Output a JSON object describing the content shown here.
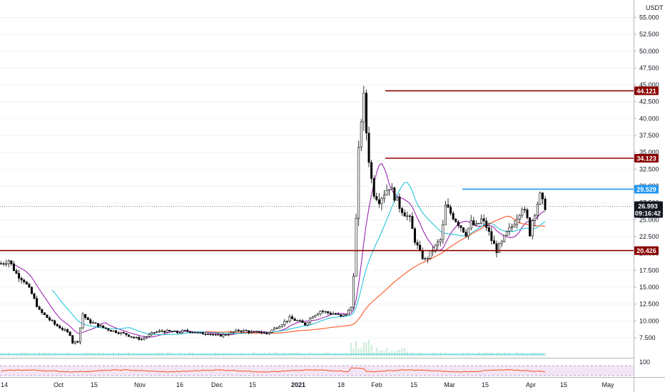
{
  "currency_label": "USDT",
  "chart_data": {
    "type": "candlestick",
    "title": "",
    "y_axis": {
      "ticks": [
        "55.000",
        "52.500",
        "50.000",
        "47.500",
        "45.000",
        "42.500",
        "40.000",
        "37.500",
        "35.000",
        "32.500",
        "30.000",
        "27.500",
        "25.000",
        "22.500",
        "20.000",
        "17.500",
        "15.000",
        "12.500",
        "10.000",
        "7.500"
      ],
      "ylim": [
        5.8,
        56
      ]
    },
    "x_axis": {
      "ticks": [
        "14",
        "Oct",
        "15",
        "Nov",
        "16",
        "Dec",
        "15",
        "2021",
        "18",
        "Feb",
        "15",
        "Mar",
        "15",
        "Apr",
        "15",
        "May"
      ],
      "bold_ticks": [
        "2021"
      ]
    },
    "horizontal_levels": [
      {
        "value": 44.121,
        "label": "44.121",
        "color": "#8b0000",
        "start": "Feb"
      },
      {
        "value": 34.123,
        "label": "34.123",
        "color": "#8b0000",
        "start": "Feb"
      },
      {
        "value": 29.529,
        "label": "29.529",
        "color": "#2196f3",
        "start": "Mar"
      },
      {
        "value": 20.426,
        "label": "20.426",
        "color": "#8b0000",
        "start": "14"
      }
    ],
    "last_price": {
      "value": 26.993,
      "label": "26.993",
      "countdown": "09:16:42"
    },
    "price_path": [
      [
        0,
        18.5
      ],
      [
        3,
        19
      ],
      [
        6,
        17
      ],
      [
        9,
        16
      ],
      [
        12,
        14
      ],
      [
        15,
        11.5
      ],
      [
        18,
        10.5
      ],
      [
        21,
        9.5
      ],
      [
        24,
        8.8
      ],
      [
        27,
        8
      ],
      [
        28,
        6.8
      ],
      [
        30,
        7
      ],
      [
        32,
        11
      ],
      [
        34,
        10
      ],
      [
        37,
        9.5
      ],
      [
        40,
        9
      ],
      [
        43,
        8.6
      ],
      [
        46,
        8.3
      ],
      [
        49,
        8
      ],
      [
        52,
        7.5
      ],
      [
        55,
        7.3
      ],
      [
        57,
        7.7
      ],
      [
        60,
        8.3
      ],
      [
        63,
        8.5
      ],
      [
        66,
        8.4
      ],
      [
        69,
        8.3
      ],
      [
        72,
        8.5
      ],
      [
        75,
        8.4
      ],
      [
        78,
        8.1
      ],
      [
        81,
        8.2
      ],
      [
        84,
        7.8
      ],
      [
        87,
        7.9
      ],
      [
        90,
        8.2
      ],
      [
        93,
        8.6
      ],
      [
        96,
        8.5
      ],
      [
        99,
        8.2
      ],
      [
        101,
        8.4
      ],
      [
        104,
        8.1
      ],
      [
        107,
        8.9
      ],
      [
        110,
        9.6
      ],
      [
        113,
        10.4
      ],
      [
        116,
        10
      ],
      [
        119,
        9.5
      ],
      [
        122,
        10.8
      ],
      [
        125,
        11.5
      ],
      [
        128,
        11.2
      ],
      [
        131,
        11
      ],
      [
        133,
        10.6
      ],
      [
        135,
        11
      ],
      [
        137,
        12
      ],
      [
        138,
        17
      ],
      [
        139,
        25
      ],
      [
        140,
        35
      ],
      [
        141,
        40
      ],
      [
        142,
        43
      ],
      [
        143,
        38
      ],
      [
        144,
        34
      ],
      [
        145,
        31
      ],
      [
        146,
        29
      ],
      [
        148,
        28
      ],
      [
        150,
        29
      ],
      [
        152,
        30
      ],
      [
        154,
        28.5
      ],
      [
        156,
        27
      ],
      [
        158,
        26
      ],
      [
        160,
        25
      ],
      [
        162,
        22
      ],
      [
        164,
        20
      ],
      [
        166,
        19
      ],
      [
        168,
        20
      ],
      [
        170,
        21
      ],
      [
        172,
        22
      ],
      [
        173,
        24
      ],
      [
        174,
        27
      ],
      [
        176,
        26
      ],
      [
        178,
        25
      ],
      [
        180,
        24
      ],
      [
        182,
        23
      ],
      [
        184,
        24.5
      ],
      [
        186,
        24
      ],
      [
        188,
        25
      ],
      [
        190,
        24
      ],
      [
        192,
        22
      ],
      [
        194,
        20.5
      ],
      [
        196,
        21.5
      ],
      [
        198,
        23
      ],
      [
        200,
        24
      ],
      [
        202,
        25.5
      ],
      [
        204,
        27
      ],
      [
        206,
        25
      ],
      [
        207,
        23
      ],
      [
        208,
        25
      ],
      [
        210,
        27.5
      ],
      [
        211,
        28.5
      ],
      [
        212,
        27.5
      ],
      [
        213,
        27
      ]
    ],
    "ma_fast_color": "#9c27b0",
    "ma_mid_color": "#26c6da",
    "ma_slow_color": "#ff5722",
    "volume_color": "#26c6da",
    "indicator": {
      "label": "100",
      "line_color": "#f4511e",
      "band_color": "#f3e5f5"
    }
  }
}
